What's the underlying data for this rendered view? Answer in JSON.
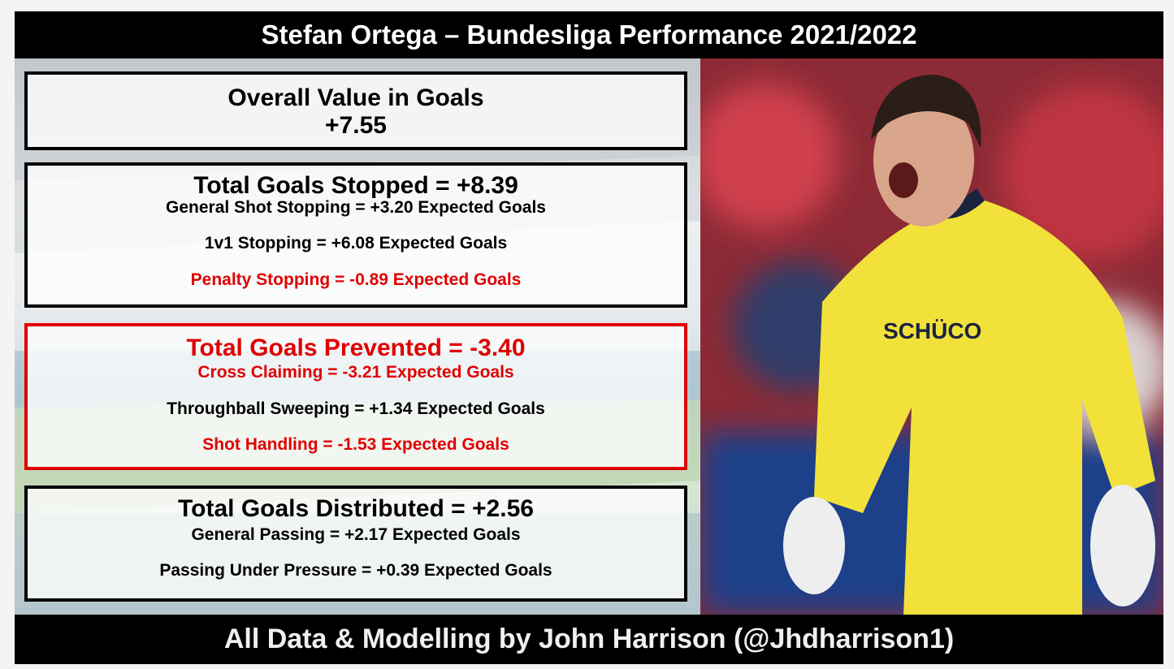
{
  "header": {
    "title": "Stefan Ortega – Bundesliga Performance 2021/2022"
  },
  "panels": [
    {
      "heading": "Overall Value in Goals",
      "value": "+7.55",
      "border_color": "#000000",
      "heading_color": "#000000"
    },
    {
      "heading": "Total Goals Stopped = +8.39",
      "border_color": "#000000",
      "heading_color": "#000000",
      "lines": [
        {
          "text": "General Shot Stopping = +3.20 Expected Goals",
          "color": "#000000"
        },
        {
          "text": "1v1 Stopping = +6.08 Expected Goals",
          "color": "#000000"
        },
        {
          "text": "Penalty Stopping = -0.89 Expected Goals",
          "color": "#e00000"
        }
      ]
    },
    {
      "heading": "Total Goals Prevented = -3.40",
      "border_color": "#e00000",
      "heading_color": "#e00000",
      "lines": [
        {
          "text": "Cross Claiming = -3.21 Expected Goals",
          "color": "#e00000"
        },
        {
          "text": "Throughball Sweeping = +1.34 Expected Goals",
          "color": "#000000"
        },
        {
          "text": "Shot Handling = -1.53 Expected Goals",
          "color": "#e00000"
        }
      ]
    },
    {
      "heading": "Total Goals Distributed = +2.56",
      "border_color": "#000000",
      "heading_color": "#000000",
      "lines": [
        {
          "text": "General Passing = +2.17 Expected Goals",
          "color": "#000000"
        },
        {
          "text": "Passing Under Pressure = +0.39 Expected Goals",
          "color": "#000000"
        }
      ]
    }
  ],
  "footer": {
    "text": "All Data & Modelling by John Harrison (@Jhdharrison1)"
  }
}
